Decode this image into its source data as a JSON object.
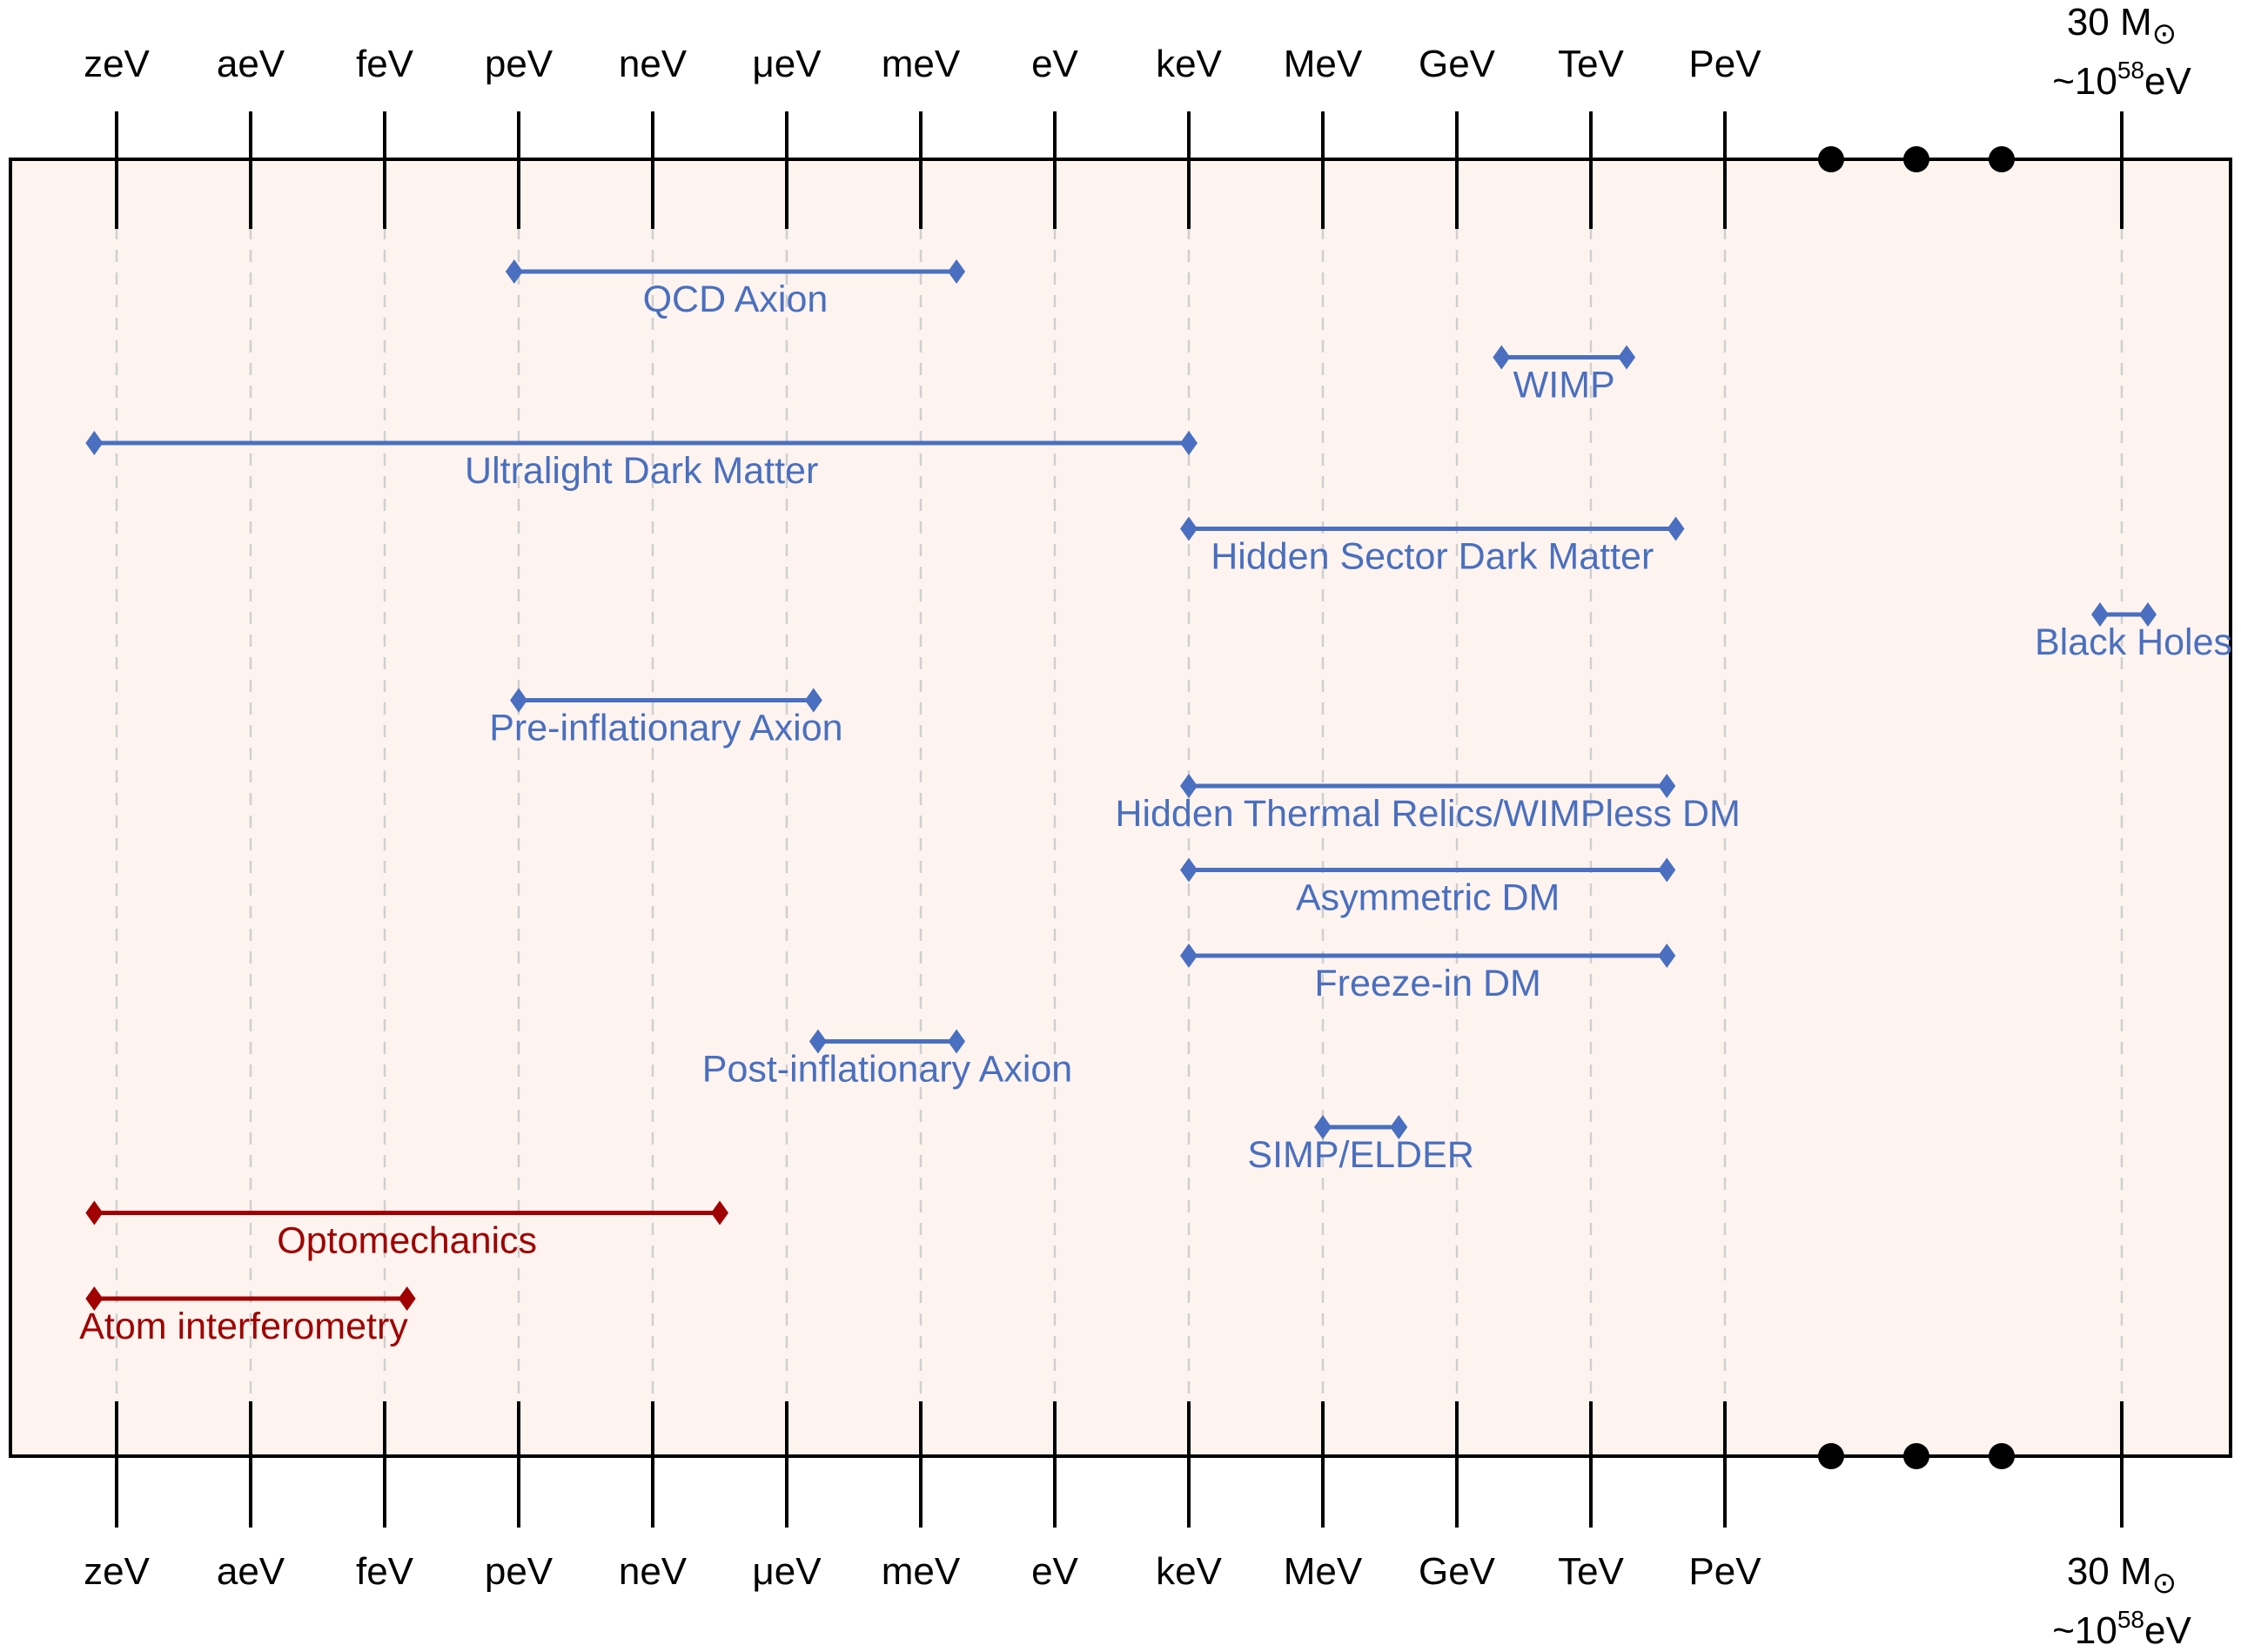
{
  "chart_data": {
    "type": "range",
    "title": "",
    "xlabel": "",
    "ylabel": "",
    "x_scale": "log10 eV",
    "ticks": [
      {
        "label": "zeV",
        "log10_eV": -21
      },
      {
        "label": "aeV",
        "log10_eV": -18
      },
      {
        "label": "feV",
        "log10_eV": -15
      },
      {
        "label": "peV",
        "log10_eV": -12
      },
      {
        "label": "neV",
        "log10_eV": -9
      },
      {
        "label": "μeV",
        "log10_eV": -6
      },
      {
        "label": "meV",
        "log10_eV": -3
      },
      {
        "label": "eV",
        "log10_eV": 0
      },
      {
        "label": "keV",
        "log10_eV": 3
      },
      {
        "label": "MeV",
        "log10_eV": 6
      },
      {
        "label": "GeV",
        "log10_eV": 9
      },
      {
        "label": "TeV",
        "log10_eV": 12
      },
      {
        "label": "PeV",
        "log10_eV": 15
      }
    ],
    "axis_break": {
      "marker": "• • •",
      "after_log10_eV": 15
    },
    "far_tick": {
      "line1": "30 M",
      "sun_symbol": "⊙",
      "line2_prefix": "~10",
      "line2_sup": "58",
      "line2_suffix": "eV",
      "log10_eV": 58
    },
    "colors": {
      "theory": "#4a6fc0",
      "experiment": "#a00000",
      "background": "#fdf4ef",
      "axis": "#000000",
      "grid": "#cfcfcf"
    },
    "series": [
      {
        "name": "QCD Axion",
        "kind": "theory",
        "from_log10_eV": -12.1,
        "to_log10_eV": -2.2
      },
      {
        "name": "WIMP",
        "kind": "theory",
        "from_log10_eV": 10,
        "to_log10_eV": 12.8
      },
      {
        "name": "Ultralight Dark Matter",
        "kind": "theory",
        "from_log10_eV": -21.5,
        "to_log10_eV": 3
      },
      {
        "name": "Hidden Sector Dark Matter",
        "kind": "theory",
        "from_log10_eV": 3,
        "to_log10_eV": 13.9
      },
      {
        "name": "Black Holes",
        "kind": "theory",
        "from_log10_eV": 57.5,
        "to_log10_eV": 58.6
      },
      {
        "name": "Pre-inflationary Axion",
        "kind": "theory",
        "from_log10_eV": -12,
        "to_log10_eV": -5.4
      },
      {
        "name": "Hidden Thermal Relics/WIMPless DM",
        "kind": "theory",
        "from_log10_eV": 3,
        "to_log10_eV": 13.7
      },
      {
        "name": "Asymmetric DM",
        "kind": "theory",
        "from_log10_eV": 3,
        "to_log10_eV": 13.7
      },
      {
        "name": "Freeze-in DM",
        "kind": "theory",
        "from_log10_eV": 3,
        "to_log10_eV": 13.7
      },
      {
        "name": "Post-inflationary Axion",
        "kind": "theory",
        "from_log10_eV": -5.3,
        "to_log10_eV": -2.2
      },
      {
        "name": "SIMP/ELDER",
        "kind": "theory",
        "from_log10_eV": 6,
        "to_log10_eV": 7.7
      },
      {
        "name": "Optomechanics",
        "kind": "experiment",
        "from_log10_eV": -21.5,
        "to_log10_eV": -7.5
      },
      {
        "name": "Atom interferometry",
        "kind": "experiment",
        "from_log10_eV": -21.5,
        "to_log10_eV": -14.5
      }
    ]
  }
}
